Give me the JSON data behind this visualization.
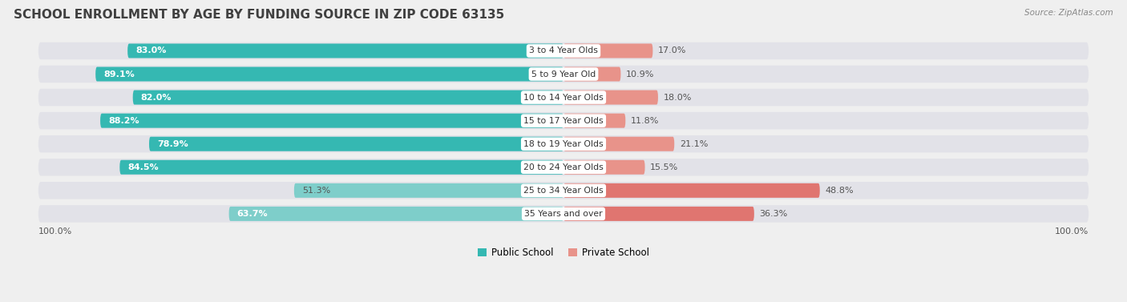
{
  "title": "SCHOOL ENROLLMENT BY AGE BY FUNDING SOURCE IN ZIP CODE 63135",
  "source": "Source: ZipAtlas.com",
  "categories": [
    "3 to 4 Year Olds",
    "5 to 9 Year Old",
    "10 to 14 Year Olds",
    "15 to 17 Year Olds",
    "18 to 19 Year Olds",
    "20 to 24 Year Olds",
    "25 to 34 Year Olds",
    "35 Years and over"
  ],
  "public_values": [
    83.0,
    89.1,
    82.0,
    88.2,
    78.9,
    84.5,
    51.3,
    63.7
  ],
  "private_values": [
    17.0,
    10.9,
    18.0,
    11.8,
    21.1,
    15.5,
    48.8,
    36.3
  ],
  "public_colors": [
    "#35b8b2",
    "#35b8b2",
    "#35b8b2",
    "#35b8b2",
    "#35b8b2",
    "#35b8b2",
    "#7ececa",
    "#7ececa"
  ],
  "private_colors": [
    "#e8938a",
    "#e8938a",
    "#e8938a",
    "#e8938a",
    "#e8938a",
    "#e8938a",
    "#e07570",
    "#e07570"
  ],
  "bg_color": "#efefef",
  "bar_bg_color": "#e2e2e8",
  "title_fontsize": 11,
  "bar_height": 0.62,
  "legend_labels": [
    "Public School",
    "Private School"
  ],
  "legend_pub_color": "#35b8b2",
  "legend_priv_color": "#e8938a"
}
